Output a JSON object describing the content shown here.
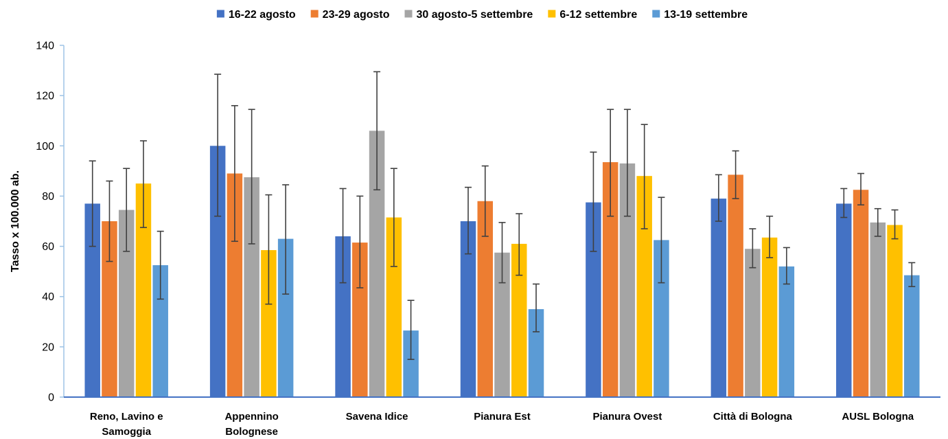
{
  "chart_data": {
    "type": "bar",
    "title": "",
    "xlabel": "",
    "ylabel": "Tasso x 100.000 ab.",
    "ylim": [
      0,
      140
    ],
    "yticks": [
      0,
      20,
      40,
      60,
      80,
      100,
      120,
      140
    ],
    "grid": false,
    "legend_position": "top",
    "error_bars": true,
    "categories": [
      "Reno, Lavino e Samoggia",
      "Appennino Bolognese",
      "Savena Idice",
      "Pianura Est",
      "Pianura Ovest",
      "Città di Bologna",
      "AUSL Bologna"
    ],
    "series": [
      {
        "name": "16-22 agosto",
        "color": "#4472C4",
        "values": [
          77,
          100,
          64,
          70,
          77.5,
          79,
          77
        ],
        "err_low": [
          60,
          72,
          45.5,
          57,
          58,
          70,
          71.5
        ],
        "err_high": [
          94,
          128.5,
          83,
          83.5,
          97.5,
          88.5,
          83
        ]
      },
      {
        "name": "23-29 agosto",
        "color": "#ED7D31",
        "values": [
          70,
          89,
          61.5,
          78,
          93.5,
          88.5,
          82.5
        ],
        "err_low": [
          54,
          62,
          43.5,
          64,
          72,
          79,
          76.5
        ],
        "err_high": [
          86,
          116,
          80,
          92,
          114.5,
          98,
          89
        ]
      },
      {
        "name": "30 agosto-5 settembre",
        "color": "#A5A5A5",
        "values": [
          74.5,
          87.5,
          106,
          57.5,
          93,
          59,
          69.5
        ],
        "err_low": [
          58,
          61,
          82.5,
          45.5,
          72,
          51.5,
          64
        ],
        "err_high": [
          91,
          114.5,
          129.5,
          69.5,
          114.5,
          67,
          75
        ]
      },
      {
        "name": "6-12 settembre",
        "color": "#FFC000",
        "values": [
          85,
          58.5,
          71.5,
          61,
          88,
          63.5,
          68.5
        ],
        "err_low": [
          67.5,
          37,
          52,
          48.5,
          67,
          55.5,
          63
        ],
        "err_high": [
          102,
          80.5,
          91,
          73,
          108.5,
          72,
          74.5
        ]
      },
      {
        "name": "13-19 settembre",
        "color": "#5B9BD5",
        "values": [
          52.5,
          63,
          26.5,
          35,
          62.5,
          52,
          48.5
        ],
        "err_low": [
          39,
          41,
          15,
          26,
          45.5,
          45,
          44
        ],
        "err_high": [
          66,
          84.5,
          38.5,
          45,
          79.5,
          59.5,
          53.5
        ]
      }
    ]
  }
}
